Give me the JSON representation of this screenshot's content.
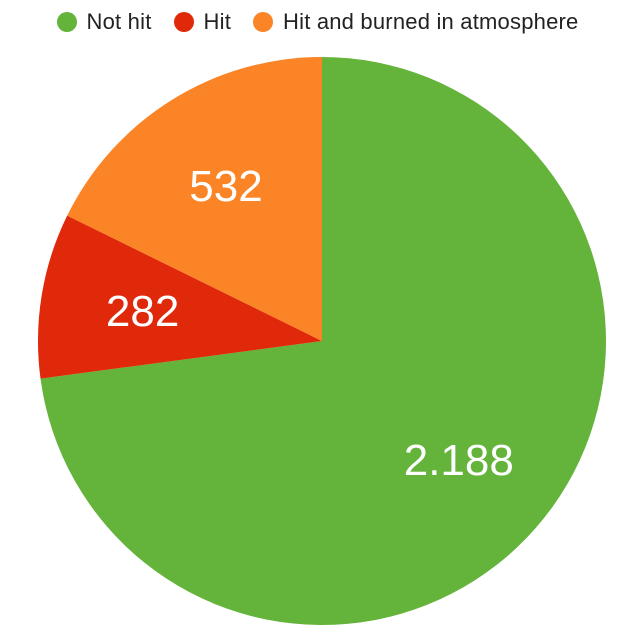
{
  "chart_data": {
    "type": "pie",
    "title": "",
    "categories": [
      "Not hit",
      "Hit",
      "Hit and burned in atmosphere"
    ],
    "values": [
      2188,
      282,
      532
    ],
    "value_labels": [
      "2.188",
      "282",
      "532"
    ],
    "colors": [
      "#64b33a",
      "#e0280b",
      "#fb8426"
    ],
    "legend": "top",
    "start_angle_deg": 0,
    "direction": "clockwise"
  }
}
